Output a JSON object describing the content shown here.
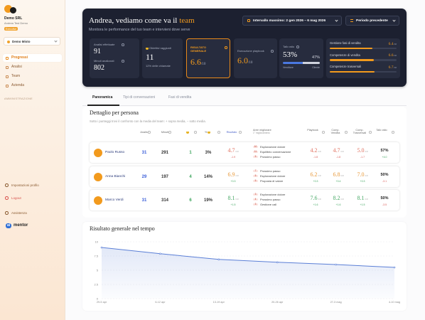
{
  "sidebar": {
    "company": "Demo SRL",
    "user": "Andrea Test Demo",
    "role": "Executive",
    "workspace": "Demo Misto",
    "nav": [
      "Progressi",
      "Analisi",
      "Team",
      "Azienda"
    ],
    "section": "AMMINISTRAZIONE",
    "footer": [
      "Impostazioni profilo",
      "Logout",
      "Assistenza"
    ],
    "brand_badge": "ai",
    "brand": "mentor"
  },
  "header": {
    "title": "Andrea, vediamo come va il",
    "highlight": "team",
    "subtitle": "Monitora le performance del tuo team e intervieni dove serve",
    "range": "Intervallo massimo: 2 gen 2026 – 6 mag 2026",
    "compare": "Periodo precedente"
  },
  "kpis": {
    "analyses": {
      "label": "Analisi effettuate",
      "value": 91
    },
    "minutes": {
      "label": "Minuti analizzati",
      "value": 802
    },
    "goals": {
      "label": "Obiettivi raggiunti",
      "value": 11,
      "note": "12% delle chiamate"
    },
    "overall": {
      "label": "RISULTATO GENERALE",
      "value": 6.6,
      "scale": {
        "value": 10,
        "label": "/10"
      }
    },
    "playbook": {
      "label": "Esecuzione playbook",
      "value": {
        "value": 6,
        "label": "6.0"
      },
      "scale": {
        "value": 10,
        "label": "/10"
      }
    },
    "talk": {
      "label": "Talk ratio",
      "seller": {
        "value": 53,
        "label": "53%"
      },
      "client": {
        "value": 47,
        "label": "47%"
      },
      "seller_label": "Venditore",
      "client_label": "Cliente"
    },
    "skills": {
      "scale": {
        "value": 10,
        "label": "/10"
      },
      "items": [
        {
          "label": "Gestione fasi di vendita",
          "value": 6.4
        },
        {
          "label": "Competenze di vendita",
          "value": 6.6
        },
        {
          "label": "Competenze trasversali",
          "value": 6.7
        }
      ]
    }
  },
  "tabs": [
    "Panoramica",
    "Tipi di conversazioni",
    "Fasi di vendita"
  ],
  "detail": {
    "title": "Dettaglio per persona",
    "note": "Sotto i punteggi trovi il confronto con la media del team: + sopra media, − sotto media.",
    "scale": "/10",
    "columns": {
      "analyses": "Analisi",
      "minutes": "Minuti",
      "goals_pct": "%",
      "result": "Risultato",
      "areas": "Aree migliorare",
      "areas_sub": "1° miglioramento",
      "playbook": "Playbook",
      "sales": "Comp. Vendita",
      "soft": "Comp. Trasversali",
      "talk": "Talk ratio"
    },
    "rows": [
      {
        "name": "Paolo Russo",
        "analyses": "31",
        "minutes": "291",
        "goals": "1",
        "goals_pct": "3%",
        "color": "#e0705f",
        "result": "4.7",
        "result_delta": "-1.9",
        "areas": [
          {
            "count": "10",
            "label": "Esplorazione dolore"
          },
          {
            "count": "11",
            "label": "Equilibrio conversazione"
          },
          {
            "count": "5",
            "label": "Prossimo passo"
          }
        ],
        "playbook": "4.2",
        "playbook_delta": "-1.8",
        "sales": "4.7",
        "sales_delta": "-1.8",
        "soft": "5.0",
        "soft_delta": "-1.7",
        "talk": "57%",
        "talk_delta": "+4.0"
      },
      {
        "name": "Anna Bianchi",
        "analyses": "29",
        "minutes": "197",
        "goals": "4",
        "goals_pct": "14%",
        "color": "#e89a3c",
        "result": "6.9",
        "result_delta": "+0.3",
        "areas": [
          {
            "count": "7",
            "label": "Prossimo passo"
          },
          {
            "count": "5",
            "label": "Esplorazione dolore"
          },
          {
            "count": "5",
            "label": "Proposta di valore"
          }
        ],
        "playbook": "6.2",
        "playbook_delta": "+0.3",
        "sales": "6.8",
        "sales_delta": "+0.4",
        "soft": "7.0",
        "soft_delta": "+0.3",
        "talk": "50%",
        "talk_delta": "-3.1"
      },
      {
        "name": "Marco Verdi",
        "analyses": "31",
        "minutes": "314",
        "goals": "6",
        "goals_pct": "19%",
        "color": "#46a865",
        "result": "8.1",
        "result_delta": "+1.5",
        "areas": [
          {
            "count": "3",
            "label": "Esplorazione dolore"
          },
          {
            "count": "4",
            "label": "Prossimo passo"
          },
          {
            "count": "3",
            "label": "Gestione call"
          }
        ],
        "playbook": "7.6",
        "playbook_delta": "+1.6",
        "sales": "8.2",
        "sales_delta": "+1.6",
        "soft": "8.1",
        "soft_delta": "+1.5",
        "talk": "50%",
        "talk_delta": "-3.5"
      }
    ]
  },
  "chart_data": {
    "type": "line",
    "title": "Risultato generale nel tempo",
    "categories": [
      "29-5 apr",
      "6-12 apr",
      "13-19 apr",
      "20-26 apr",
      "27-3 mag",
      "4-10 mag"
    ],
    "values": [
      9.0,
      7.9,
      6.9,
      6.4,
      6.0,
      5.5
    ],
    "color": "#5b7fd6",
    "ylim": [
      0,
      10
    ],
    "yticks": [
      0,
      2.5,
      5,
      7.5,
      10
    ],
    "grid": true
  }
}
